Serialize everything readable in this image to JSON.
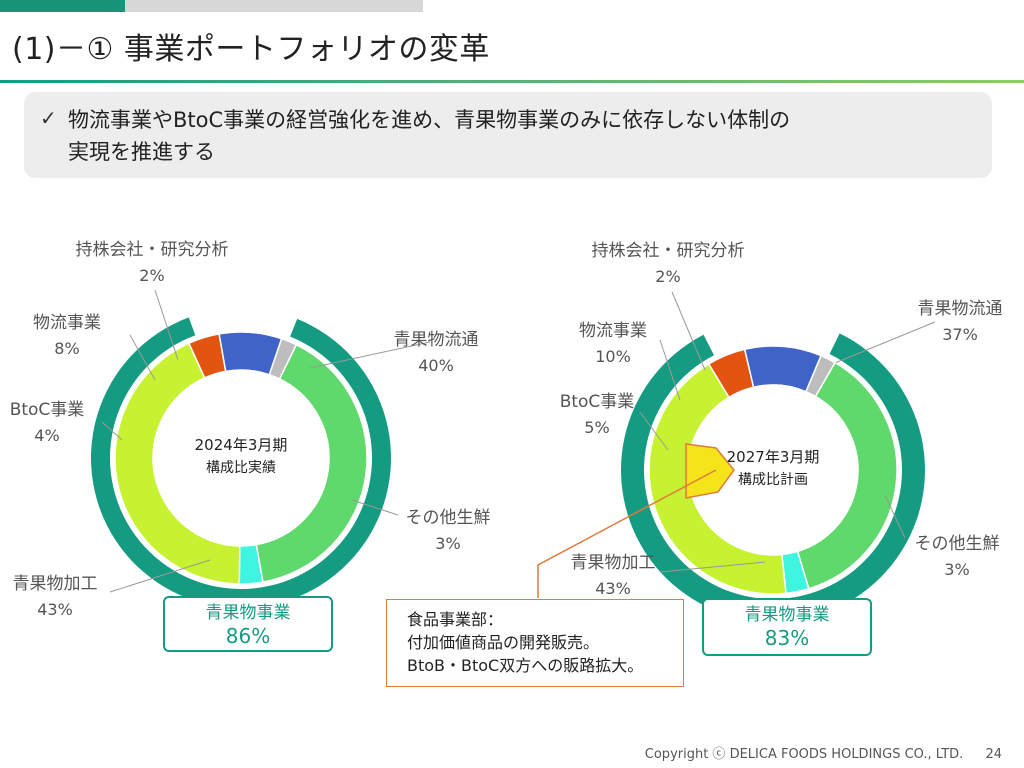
{
  "slide": {
    "title": "(1)－① 事業ポートフォリオの変革",
    "summary_line1": "物流事業やBtoC事業の経営強化を進め、青果物事業のみに依存しない体制の",
    "summary_line2": "実現を推進する"
  },
  "colors": {
    "accent": "#169b83",
    "outer_ring": "#169b83",
    "callout_border": "#e07b39"
  },
  "chart_data": [
    {
      "type": "pie",
      "subtype": "donut",
      "center_label_line1": "2024年3月期",
      "center_label_line2": "構成比実績",
      "segments": [
        {
          "name": "青果物流通",
          "value": 40,
          "label": "40%",
          "color": "#5fd86c"
        },
        {
          "name": "その他生鮮",
          "value": 3,
          "label": "3%",
          "color": "#3ff5e0"
        },
        {
          "name": "青果物加工",
          "value": 43,
          "label": "43%",
          "color": "#c6f232"
        },
        {
          "name": "BtoC事業",
          "value": 4,
          "label": "4%",
          "color": "#e2540f"
        },
        {
          "name": "物流事業",
          "value": 8,
          "label": "8%",
          "color": "#4063c8"
        },
        {
          "name": "持株会社・研究分析",
          "value": 2,
          "label": "2%",
          "color": "#bdbdbd"
        }
      ],
      "outer_group": {
        "name": "青果物事業",
        "value": 86,
        "label": "86%"
      }
    },
    {
      "type": "pie",
      "subtype": "donut",
      "center_label_line1": "2027年3月期",
      "center_label_line2": "構成比計画",
      "segments": [
        {
          "name": "青果物流通",
          "value": 37,
          "label": "37%",
          "color": "#5fd86c"
        },
        {
          "name": "その他生鮮",
          "value": 3,
          "label": "3%",
          "color": "#3ff5e0"
        },
        {
          "name": "青果物加工",
          "value": 43,
          "label": "43%",
          "color": "#c6f232"
        },
        {
          "name": "BtoC事業",
          "value": 5,
          "label": "5%",
          "color": "#e2540f"
        },
        {
          "name": "物流事業",
          "value": 10,
          "label": "10%",
          "color": "#4063c8"
        },
        {
          "name": "持株会社・研究分析",
          "value": 2,
          "label": "2%",
          "color": "#bdbdbd"
        }
      ],
      "highlight": {
        "name": "食品事業部",
        "color": "#f6e41a"
      },
      "outer_group": {
        "name": "青果物事業",
        "value": 83,
        "label": "83%"
      }
    }
  ],
  "callout": {
    "line1": "食品事業部：",
    "line2": "付加価値商品の開発販売。",
    "line3": "BtoB・BtoC双方への販路拡大。"
  },
  "footer": {
    "copyright": "Copyright ⓒ DELICA FOODS HOLDINGS CO., LTD.",
    "page": "24"
  }
}
